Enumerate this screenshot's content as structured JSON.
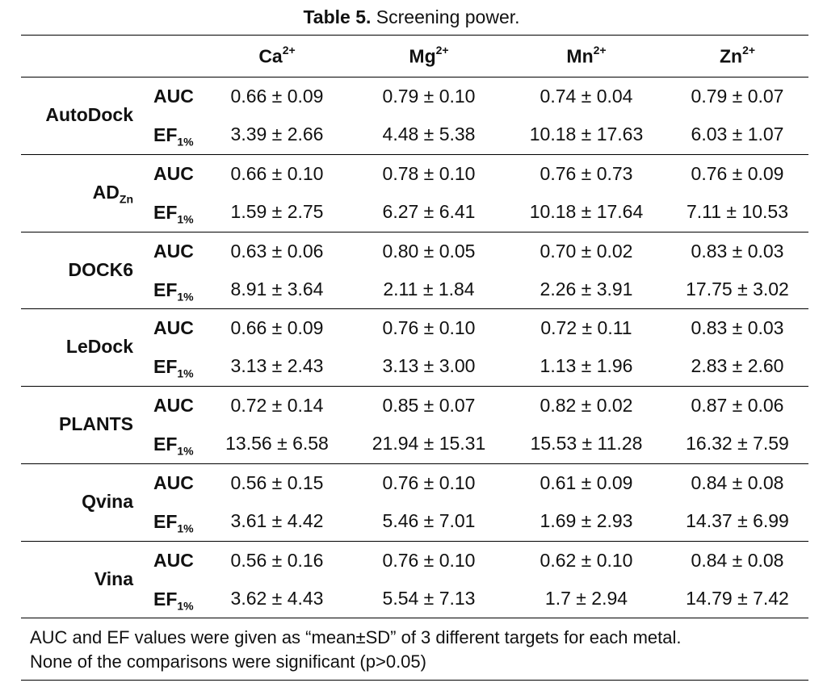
{
  "title": {
    "label": "Table 5.",
    "text": "Screening power."
  },
  "columns": [
    {
      "name": "Ca",
      "charge": "2+"
    },
    {
      "name": "Mg",
      "charge": "2+"
    },
    {
      "name": "Mn",
      "charge": "2+"
    },
    {
      "name": "Zn",
      "charge": "2+"
    }
  ],
  "metrics": {
    "auc": "AUC",
    "ef": "EF",
    "ef_sub": "1%"
  },
  "rows": [
    {
      "tool": "AutoDock",
      "tool_sub": "",
      "auc": [
        "0.66 ± 0.09",
        "0.79 ± 0.10",
        "0.74 ± 0.04",
        "0.79 ± 0.07"
      ],
      "ef": [
        "3.39 ± 2.66",
        "4.48 ± 5.38",
        "10.18 ± 17.63",
        "6.03 ± 1.07"
      ]
    },
    {
      "tool": "AD",
      "tool_sub": "Zn",
      "auc": [
        "0.66 ± 0.10",
        "0.78 ± 0.10",
        "0.76 ± 0.73",
        "0.76 ± 0.09"
      ],
      "ef": [
        "1.59 ± 2.75",
        "6.27 ± 6.41",
        "10.18 ± 17.64",
        "7.11 ± 10.53"
      ]
    },
    {
      "tool": "DOCK6",
      "tool_sub": "",
      "auc": [
        "0.63 ± 0.06",
        "0.80 ± 0.05",
        "0.70 ± 0.02",
        "0.83 ± 0.03"
      ],
      "ef": [
        "8.91 ± 3.64",
        "2.11 ± 1.84",
        "2.26 ± 3.91",
        "17.75 ± 3.02"
      ]
    },
    {
      "tool": "LeDock",
      "tool_sub": "",
      "auc": [
        "0.66 ± 0.09",
        "0.76 ± 0.10",
        "0.72 ± 0.11",
        "0.83 ± 0.03"
      ],
      "ef": [
        "3.13 ± 2.43",
        "3.13 ± 3.00",
        "1.13 ± 1.96",
        "2.83 ± 2.60"
      ]
    },
    {
      "tool": "PLANTS",
      "tool_sub": "",
      "auc": [
        "0.72 ± 0.14",
        "0.85 ± 0.07",
        "0.82 ± 0.02",
        "0.87 ± 0.06"
      ],
      "ef": [
        "13.56 ± 6.58",
        "21.94 ± 15.31",
        "15.53 ± 11.28",
        "16.32 ± 7.59"
      ]
    },
    {
      "tool": "Qvina",
      "tool_sub": "",
      "auc": [
        "0.56 ± 0.15",
        "0.76 ± 0.10",
        "0.61 ± 0.09",
        "0.84 ± 0.08"
      ],
      "ef": [
        "3.61 ± 4.42",
        "5.46 ± 7.01",
        "1.69 ± 2.93",
        "14.37 ± 6.99"
      ]
    },
    {
      "tool": "Vina",
      "tool_sub": "",
      "auc": [
        "0.56 ± 0.16",
        "0.76 ± 0.10",
        "0.62 ± 0.10",
        "0.84 ± 0.08"
      ],
      "ef": [
        "3.62 ± 4.43",
        "5.54 ± 7.13",
        "1.7 ± 2.94",
        "14.79 ± 7.42"
      ]
    }
  ],
  "footnote": [
    "AUC and EF values were given as “mean±SD” of 3 different targets for each metal.",
    "None of the comparisons were significant (p>0.05)"
  ]
}
